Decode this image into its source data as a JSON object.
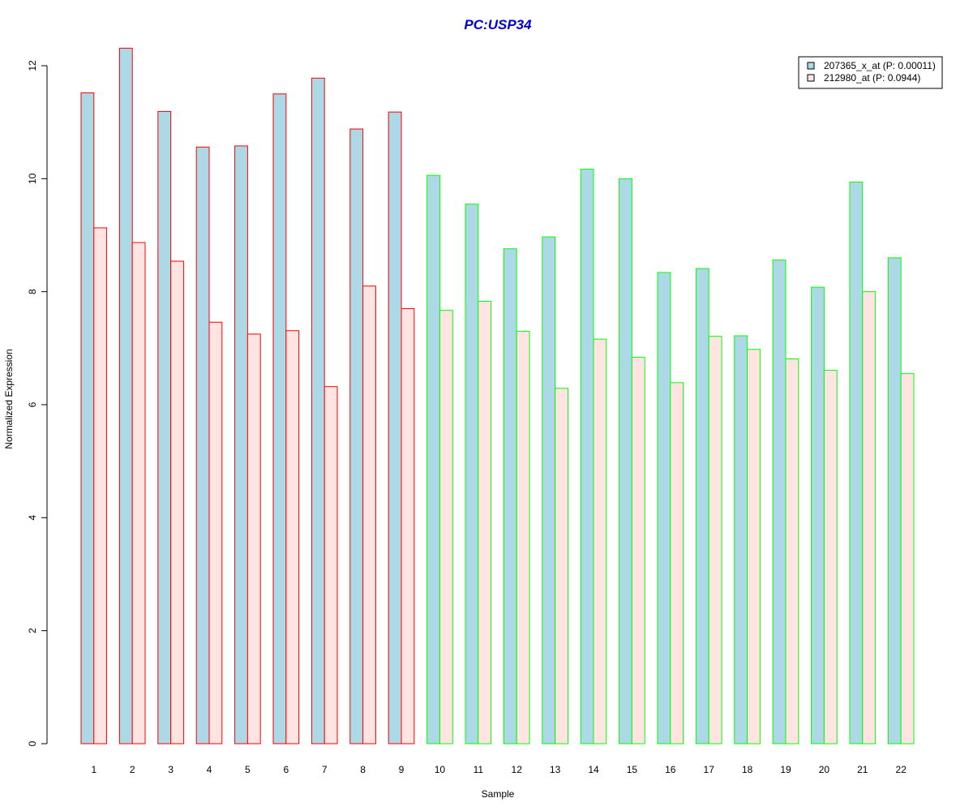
{
  "chart_data": {
    "type": "bar",
    "title": "PC:USP34",
    "xlabel": "Sample",
    "ylabel": "Normalized Expression",
    "ylim": [
      0,
      12
    ],
    "yticks": [
      0,
      2,
      4,
      6,
      8,
      10,
      12
    ],
    "categories": [
      "1",
      "2",
      "3",
      "4",
      "5",
      "6",
      "7",
      "8",
      "9",
      "10",
      "11",
      "12",
      "13",
      "14",
      "15",
      "16",
      "17",
      "18",
      "19",
      "20",
      "21",
      "22"
    ],
    "series": [
      {
        "name": "207365_x_at (P: 0.00011)",
        "fill": "#add8e6",
        "values": [
          11.52,
          12.31,
          11.19,
          10.56,
          10.58,
          11.5,
          11.78,
          10.88,
          11.18,
          10.06,
          9.55,
          8.76,
          8.97,
          10.17,
          10.0,
          8.34,
          8.41,
          7.22,
          8.56,
          8.08,
          9.94,
          8.6
        ]
      },
      {
        "name": "212980_at (P: 0.0944)",
        "fill": "#ffe4e1",
        "values": [
          9.13,
          8.87,
          8.54,
          7.46,
          7.25,
          7.31,
          6.32,
          8.1,
          7.7,
          7.67,
          7.83,
          7.3,
          6.29,
          7.16,
          6.84,
          6.39,
          7.21,
          6.98,
          6.81,
          6.61,
          8.0,
          6.55
        ]
      }
    ],
    "group_outline_colors": [
      "#ff0000",
      "#ff0000",
      "#ff0000",
      "#ff0000",
      "#ff0000",
      "#ff0000",
      "#ff0000",
      "#ff0000",
      "#ff0000",
      "#00ff00",
      "#00ff00",
      "#00ff00",
      "#00ff00",
      "#00ff00",
      "#00ff00",
      "#00ff00",
      "#00ff00",
      "#00ff00",
      "#00ff00",
      "#00ff00",
      "#00ff00",
      "#00ff00"
    ],
    "title_color": "#0000cd",
    "legend_position": "top-right",
    "grid": false
  }
}
